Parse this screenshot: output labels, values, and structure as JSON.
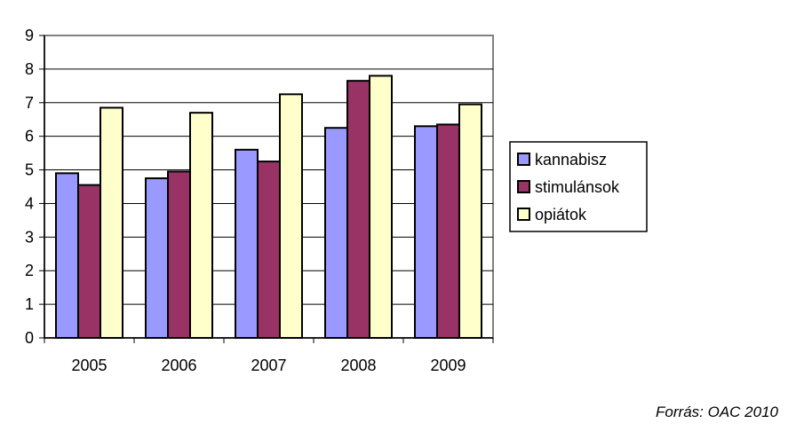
{
  "chart_data": {
    "type": "bar",
    "categories": [
      "2005",
      "2006",
      "2007",
      "2008",
      "2009"
    ],
    "series": [
      {
        "name": "kannabisz",
        "color": "#9999FF",
        "values": [
          4.9,
          4.75,
          5.6,
          6.25,
          6.3
        ]
      },
      {
        "name": "stimulánsok",
        "color": "#993366",
        "values": [
          4.55,
          4.95,
          5.25,
          7.65,
          6.35
        ]
      },
      {
        "name": "opiátok",
        "color": "#FFFFCC",
        "values": [
          6.85,
          6.7,
          7.25,
          7.8,
          6.95
        ]
      }
    ],
    "ylim": [
      0,
      9
    ],
    "yticks": [
      "0",
      "1",
      "2",
      "3",
      "4",
      "5",
      "6",
      "7",
      "8",
      "9"
    ],
    "grid": true,
    "legend_position": "right",
    "title": "",
    "xlabel": "",
    "ylabel": ""
  },
  "source_note": "Forrás: OAC 2010"
}
